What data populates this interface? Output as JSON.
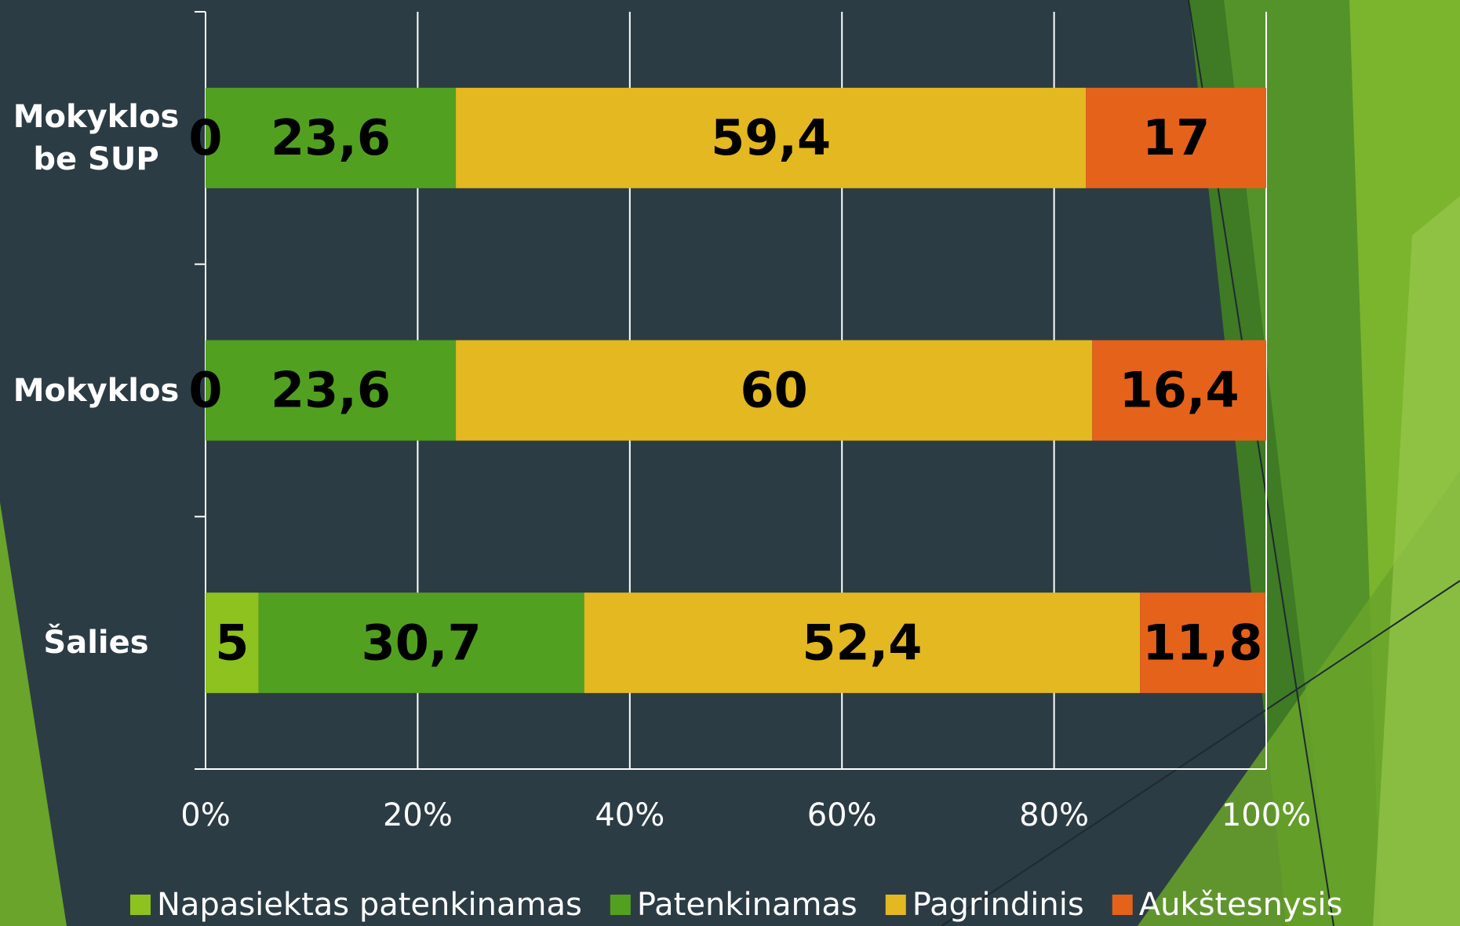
{
  "chart_data": {
    "type": "bar",
    "horizontal": true,
    "stacked": true,
    "categories": [
      "Mokyklos be SUP",
      "Mokyklos",
      "Šalies"
    ],
    "series": [
      {
        "name": "Napasiektas patenkinamas",
        "color": "#8dc21f",
        "values": [
          0,
          0,
          5
        ],
        "value_labels": [
          "0",
          "0",
          "5"
        ]
      },
      {
        "name": "Patenkinamas",
        "color": "#52a020",
        "values": [
          23.6,
          23.6,
          30.7
        ],
        "value_labels": [
          "23,6",
          "23,6",
          "30,7"
        ]
      },
      {
        "name": "Pagrindinis",
        "color": "#e3b820",
        "values": [
          59.4,
          60,
          52.4
        ],
        "value_labels": [
          "59,4",
          "60",
          "52,4"
        ]
      },
      {
        "name": "Aukštesnysis",
        "color": "#e5621b",
        "values": [
          17,
          16.4,
          11.8
        ],
        "value_labels": [
          "17",
          "16,4",
          "11,8"
        ]
      }
    ],
    "xlim": [
      0,
      100
    ],
    "xticks": [
      {
        "value": 0,
        "label": "0%"
      },
      {
        "value": 20,
        "label": "20%"
      },
      {
        "value": 40,
        "label": "40%"
      },
      {
        "value": 60,
        "label": "60%"
      },
      {
        "value": 80,
        "label": "80%"
      },
      {
        "value": 100,
        "label": "100%"
      }
    ],
    "grid": true,
    "legend": "bottom"
  }
}
